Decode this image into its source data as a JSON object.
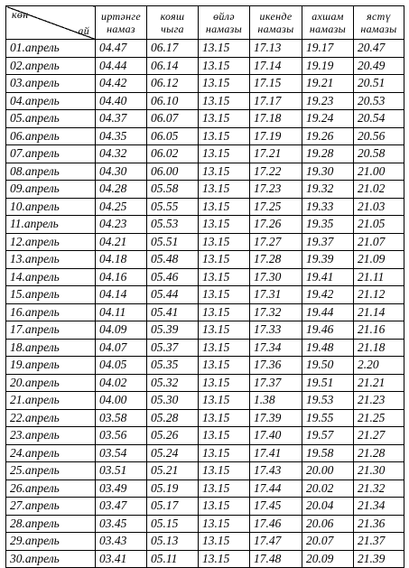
{
  "header": {
    "corner_top": "көн",
    "corner_bottom": "ай",
    "columns": [
      {
        "line1": "иртәнге",
        "line2": "намаз"
      },
      {
        "line1": "кояш",
        "line2": "чыга"
      },
      {
        "line1": "өйлә",
        "line2": "намазы"
      },
      {
        "line1": "икенде",
        "line2": "намазы"
      },
      {
        "line1": "ахшам",
        "line2": "намазы"
      },
      {
        "line1": "ястү",
        "line2": "намазы"
      }
    ]
  },
  "rows": [
    {
      "day": "01.апрель",
      "times": [
        "04.47",
        "06.17",
        "13.15",
        "17.13",
        "19.17",
        "20.47"
      ]
    },
    {
      "day": "02.апрель",
      "times": [
        "04.44",
        "06.14",
        "13.15",
        "17.14",
        "19.19",
        "20.49"
      ]
    },
    {
      "day": "03.апрель",
      "times": [
        "04.42",
        "06.12",
        "13.15",
        "17.15",
        "19.21",
        "20.51"
      ]
    },
    {
      "day": "04.апрель",
      "times": [
        "04.40",
        "06.10",
        "13.15",
        "17.17",
        "19.23",
        "20.53"
      ]
    },
    {
      "day": "05.апрель",
      "times": [
        "04.37",
        "06.07",
        "13.15",
        "17.18",
        "19.24",
        "20.54"
      ]
    },
    {
      "day": "06.апрель",
      "times": [
        "04.35",
        "06.05",
        "13.15",
        "17.19",
        "19.26",
        "20.56"
      ]
    },
    {
      "day": "07.апрель",
      "times": [
        "04.32",
        "06.02",
        "13.15",
        "17.21",
        "19.28",
        "20.58"
      ]
    },
    {
      "day": "08.апрель",
      "times": [
        "04.30",
        "06.00",
        "13.15",
        "17.22",
        "19.30",
        "21.00"
      ]
    },
    {
      "day": "09.апрель",
      "times": [
        "04.28",
        "05.58",
        "13.15",
        "17.23",
        "19.32",
        "21.02"
      ]
    },
    {
      "day": "10.апрель",
      "times": [
        "04.25",
        "05.55",
        "13.15",
        "17.25",
        "19.33",
        "21.03"
      ]
    },
    {
      "day": "11.апрель",
      "times": [
        "04.23",
        "05.53",
        "13.15",
        "17.26",
        "19.35",
        "21.05"
      ]
    },
    {
      "day": "12.апрель",
      "times": [
        "04.21",
        "05.51",
        "13.15",
        "17.27",
        "19.37",
        "21.07"
      ]
    },
    {
      "day": "13.апрель",
      "times": [
        "04.18",
        "05.48",
        "13.15",
        "17.28",
        "19.39",
        "21.09"
      ]
    },
    {
      "day": "14.апрель",
      "times": [
        "04.16",
        "05.46",
        "13.15",
        "17.30",
        "19.41",
        "21.11"
      ]
    },
    {
      "day": "15.апрель",
      "times": [
        "04.14",
        "05.44",
        "13.15",
        "17.31",
        "19.42",
        "21.12"
      ]
    },
    {
      "day": "16.апрель",
      "times": [
        "04.11",
        "05.41",
        "13.15",
        "17.32",
        "19.44",
        "21.14"
      ]
    },
    {
      "day": "17.апрель",
      "times": [
        "04.09",
        "05.39",
        "13.15",
        "17.33",
        "19.46",
        "21.16"
      ]
    },
    {
      "day": "18.апрель",
      "times": [
        "04.07",
        "05.37",
        "13.15",
        "17.34",
        "19.48",
        "21.18"
      ]
    },
    {
      "day": "19.апрель",
      "times": [
        "04.05",
        "05.35",
        "13.15",
        "17.36",
        "19.50",
        "2.20"
      ]
    },
    {
      "day": "20.апрель",
      "times": [
        "04.02",
        "05.32",
        "13.15",
        "17.37",
        "19.51",
        "21.21"
      ]
    },
    {
      "day": "21.апрель",
      "times": [
        "04.00",
        "05.30",
        "13.15",
        "1.38",
        "19.53",
        "21.23"
      ]
    },
    {
      "day": "22.апрель",
      "times": [
        "03.58",
        "05.28",
        "13.15",
        "17.39",
        "19.55",
        "21.25"
      ]
    },
    {
      "day": "23.апрель",
      "times": [
        "03.56",
        "05.26",
        "13.15",
        "17.40",
        "19.57",
        "21.27"
      ]
    },
    {
      "day": "24.апрель",
      "times": [
        "03.54",
        "05.24",
        "13.15",
        "17.41",
        "19.58",
        "21.28"
      ]
    },
    {
      "day": "25.апрель",
      "times": [
        "03.51",
        "05.21",
        "13.15",
        "17.43",
        "20.00",
        "21.30"
      ]
    },
    {
      "day": "26.апрель",
      "times": [
        "03.49",
        "05.19",
        "13.15",
        "17.44",
        "20.02",
        "21.32"
      ]
    },
    {
      "day": "27.апрель",
      "times": [
        "03.47",
        "05.17",
        "13.15",
        "17.45",
        "20.04",
        "21.34"
      ]
    },
    {
      "day": "28.апрель",
      "times": [
        "03.45",
        "05.15",
        "13.15",
        "17.46",
        "20.06",
        "21.36"
      ]
    },
    {
      "day": "29.апрель",
      "times": [
        "03.43",
        "05.13",
        "13.15",
        "17.47",
        "20.07",
        "21.37"
      ]
    },
    {
      "day": "30.апрель",
      "times": [
        "03.41",
        "05.11",
        "13.15",
        "17.48",
        "20.09",
        "21.39"
      ]
    }
  ]
}
